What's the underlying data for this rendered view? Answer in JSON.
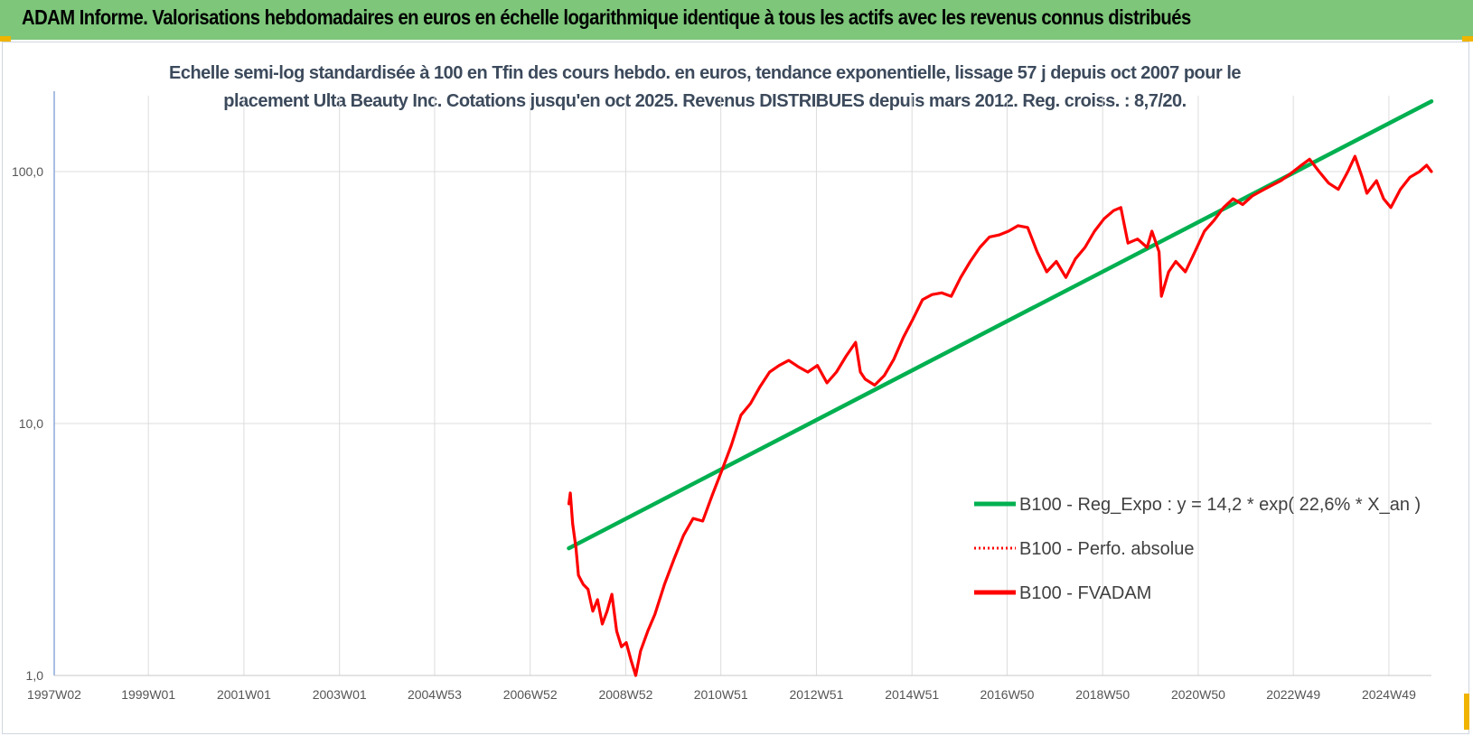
{
  "banner": {
    "title": "ADAM Informe. Valorisations hebdomadaires en euros en échelle logarithmique identique à tous les actifs avec les revenus connus distribués"
  },
  "colors": {
    "banner_bg": "#7dc67a",
    "accent_corner": "#f0b400",
    "series_trend": "#00b050",
    "series_price": "#ff0000",
    "subtitle_text": "#3c4a5c"
  },
  "chart_data": {
    "type": "line",
    "subtitle_line1": "Echelle semi-log standardisée à 100 en Tfin des cours hebdo. en euros, tendance exponentielle, lissage 57 j depuis oct 2007 pour le",
    "subtitle_line2": "placement Ulta Beauty Inc. Cotations jusqu'en oct 2025. Revenus DISTRIBUES depuis mars 2012. Reg. croiss. : 8,7/20.",
    "y_scale": "log",
    "ylim": [
      1,
      200
    ],
    "y_ticks": [
      {
        "value": 1,
        "label": "1,0"
      },
      {
        "value": 10,
        "label": "10,0"
      },
      {
        "value": 100,
        "label": "100,0"
      }
    ],
    "xlim": [
      1997.03,
      2025.85
    ],
    "x_ticks": [
      {
        "value": 1997.03,
        "label": "1997W02"
      },
      {
        "value": 1999.0,
        "label": "1999W01"
      },
      {
        "value": 2001.0,
        "label": "2001W01"
      },
      {
        "value": 2003.0,
        "label": "2003W01"
      },
      {
        "value": 2004.99,
        "label": "2004W53"
      },
      {
        "value": 2006.99,
        "label": "2006W52"
      },
      {
        "value": 2008.99,
        "label": "2008W52"
      },
      {
        "value": 2010.98,
        "label": "2010W51"
      },
      {
        "value": 2012.98,
        "label": "2012W51"
      },
      {
        "value": 2014.98,
        "label": "2014W51"
      },
      {
        "value": 2016.97,
        "label": "2016W50"
      },
      {
        "value": 2018.97,
        "label": "2018W50"
      },
      {
        "value": 2020.97,
        "label": "2020W50"
      },
      {
        "value": 2022.96,
        "label": "2022W49"
      },
      {
        "value": 2024.96,
        "label": "2024W49"
      }
    ],
    "grid": "vertical and horizontal",
    "legend_position": "bottom-right",
    "series": [
      {
        "name": "B100 - Reg_Expo : y = 14,2 * exp( 22,6% *  X_an )",
        "color": "#00b050",
        "style": "solid",
        "points": [
          [
            2007.8,
            3.2
          ],
          [
            2025.85,
            190
          ]
        ]
      },
      {
        "name": "B100 - Perfo. absolue",
        "color": "#ff0000",
        "style": "dotted",
        "points": []
      },
      {
        "name": "B100 - FVADAM",
        "color": "#ff0000",
        "style": "solid",
        "points": [
          [
            2007.8,
            4.8
          ],
          [
            2007.83,
            5.3
          ],
          [
            2007.88,
            4.0
          ],
          [
            2007.95,
            3.2
          ],
          [
            2008.0,
            2.5
          ],
          [
            2008.1,
            2.3
          ],
          [
            2008.2,
            2.2
          ],
          [
            2008.3,
            1.8
          ],
          [
            2008.4,
            2.0
          ],
          [
            2008.5,
            1.6
          ],
          [
            2008.6,
            1.8
          ],
          [
            2008.7,
            2.1
          ],
          [
            2008.8,
            1.5
          ],
          [
            2008.9,
            1.3
          ],
          [
            2009.0,
            1.35
          ],
          [
            2009.1,
            1.15
          ],
          [
            2009.2,
            1.0
          ],
          [
            2009.3,
            1.25
          ],
          [
            2009.45,
            1.5
          ],
          [
            2009.6,
            1.75
          ],
          [
            2009.8,
            2.3
          ],
          [
            2010.0,
            2.9
          ],
          [
            2010.2,
            3.6
          ],
          [
            2010.4,
            4.2
          ],
          [
            2010.6,
            4.1
          ],
          [
            2010.8,
            5.2
          ],
          [
            2011.0,
            6.5
          ],
          [
            2011.2,
            8.2
          ],
          [
            2011.4,
            10.8
          ],
          [
            2011.6,
            12.0
          ],
          [
            2011.8,
            14.0
          ],
          [
            2012.0,
            16.0
          ],
          [
            2012.2,
            17.0
          ],
          [
            2012.4,
            17.8
          ],
          [
            2012.6,
            16.8
          ],
          [
            2012.8,
            16.0
          ],
          [
            2013.0,
            17.0
          ],
          [
            2013.2,
            14.5
          ],
          [
            2013.4,
            16.0
          ],
          [
            2013.6,
            18.5
          ],
          [
            2013.8,
            21.0
          ],
          [
            2013.9,
            16.0
          ],
          [
            2014.0,
            15.0
          ],
          [
            2014.2,
            14.2
          ],
          [
            2014.4,
            15.5
          ],
          [
            2014.6,
            18.0
          ],
          [
            2014.8,
            22.0
          ],
          [
            2015.0,
            26.0
          ],
          [
            2015.2,
            31.0
          ],
          [
            2015.4,
            32.5
          ],
          [
            2015.6,
            33.0
          ],
          [
            2015.8,
            32.0
          ],
          [
            2016.0,
            38.0
          ],
          [
            2016.2,
            44.0
          ],
          [
            2016.4,
            50.0
          ],
          [
            2016.6,
            55.0
          ],
          [
            2016.8,
            56.0
          ],
          [
            2017.0,
            58.0
          ],
          [
            2017.2,
            61.0
          ],
          [
            2017.4,
            60.0
          ],
          [
            2017.6,
            48.0
          ],
          [
            2017.8,
            40.0
          ],
          [
            2018.0,
            44.0
          ],
          [
            2018.2,
            38.0
          ],
          [
            2018.4,
            45.0
          ],
          [
            2018.6,
            50.0
          ],
          [
            2018.8,
            58.0
          ],
          [
            2019.0,
            65.0
          ],
          [
            2019.2,
            70.0
          ],
          [
            2019.35,
            72.0
          ],
          [
            2019.5,
            52.0
          ],
          [
            2019.7,
            54.0
          ],
          [
            2019.9,
            50.0
          ],
          [
            2020.0,
            58.0
          ],
          [
            2020.15,
            48.0
          ],
          [
            2020.2,
            32.0
          ],
          [
            2020.35,
            40.0
          ],
          [
            2020.5,
            44.0
          ],
          [
            2020.7,
            40.0
          ],
          [
            2020.9,
            48.0
          ],
          [
            2021.1,
            58.0
          ],
          [
            2021.3,
            64.0
          ],
          [
            2021.5,
            72.0
          ],
          [
            2021.7,
            78.0
          ],
          [
            2021.9,
            74.0
          ],
          [
            2022.1,
            80.0
          ],
          [
            2022.3,
            84.0
          ],
          [
            2022.5,
            88.0
          ],
          [
            2022.7,
            92.0
          ],
          [
            2022.9,
            98.0
          ],
          [
            2023.1,
            105.0
          ],
          [
            2023.3,
            112.0
          ],
          [
            2023.5,
            100.0
          ],
          [
            2023.7,
            90.0
          ],
          [
            2023.9,
            85.0
          ],
          [
            2024.1,
            100.0
          ],
          [
            2024.25,
            115.0
          ],
          [
            2024.4,
            95.0
          ],
          [
            2024.5,
            82.0
          ],
          [
            2024.7,
            92.0
          ],
          [
            2024.85,
            78.0
          ],
          [
            2025.0,
            72.0
          ],
          [
            2025.2,
            85.0
          ],
          [
            2025.4,
            95.0
          ],
          [
            2025.6,
            100.0
          ],
          [
            2025.75,
            106.0
          ],
          [
            2025.85,
            100.0
          ]
        ]
      }
    ]
  }
}
